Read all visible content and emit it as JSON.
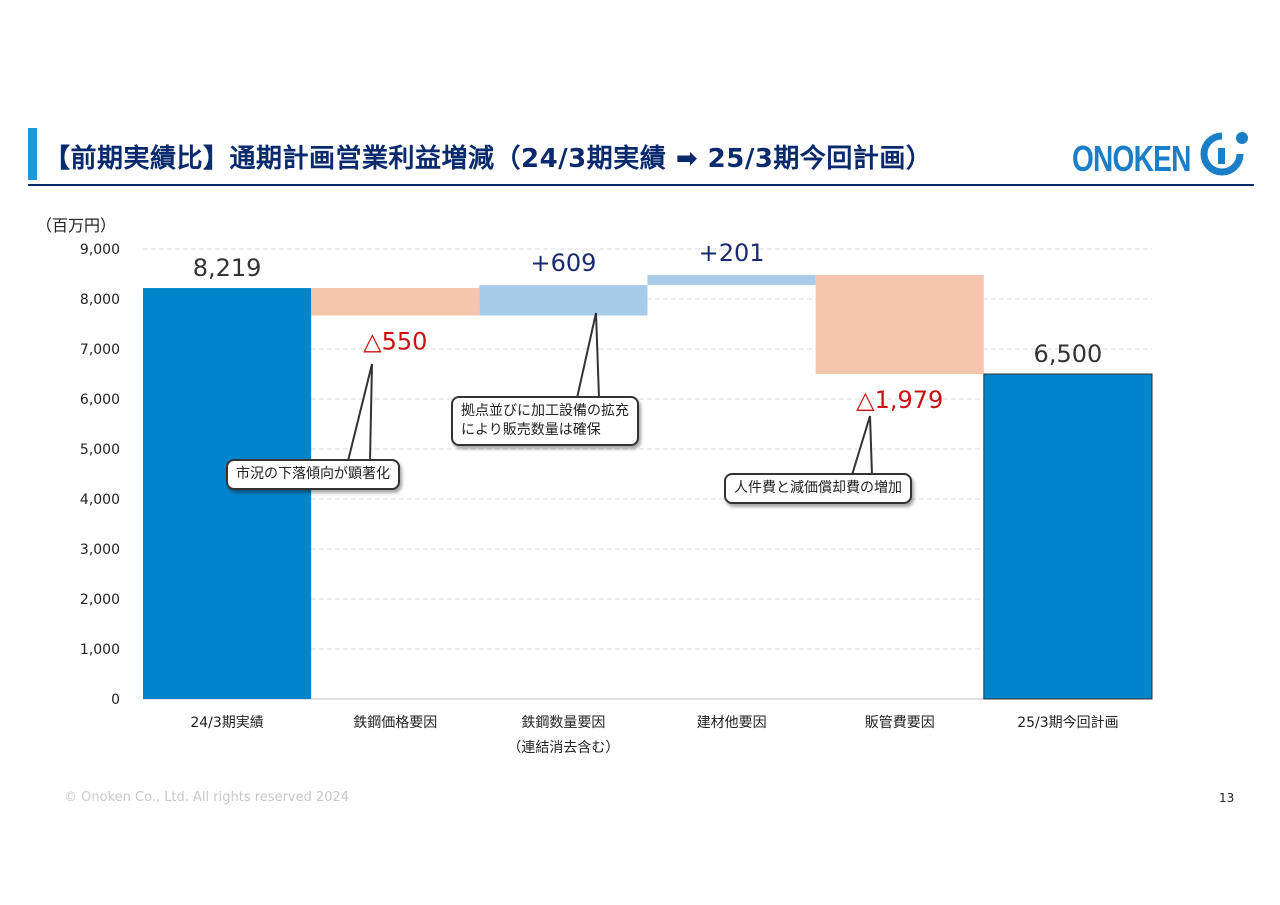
{
  "header": {
    "title": "【前期実績比】通期計画営業利益増減（24/3期実績 ➡ 25/3期今回計画）",
    "logo_text": "ONOKEN"
  },
  "colors": {
    "total": "#0085cc",
    "increase": "#a8cbea",
    "decrease": "#f5c5ad",
    "decrease_label": "#cc1111",
    "increase_label": "#1a2a6e",
    "title": "#0a2a6e",
    "accent": "#1a9ad6"
  },
  "chart_data": {
    "type": "bar",
    "subtype": "waterfall",
    "unit": "（百万円）",
    "ylim": [
      0,
      9000
    ],
    "yticks": [
      "0",
      "1,000",
      "2,000",
      "3,000",
      "4,000",
      "5,000",
      "6,000",
      "7,000",
      "8,000",
      "9,000"
    ],
    "grid": true,
    "categories": [
      "24/3期実績",
      "鉄鋼価格要因",
      "鉄鋼数量要因",
      "建材他要因",
      "販管費要因",
      "25/3期今回計画"
    ],
    "category_sublabels": [
      "",
      "",
      "（連結消去含む）",
      "",
      "",
      ""
    ],
    "values": [
      8219,
      -550,
      609,
      201,
      -1979,
      6500
    ],
    "kinds": [
      "total",
      "decrease",
      "increase",
      "increase",
      "decrease",
      "total"
    ],
    "data_labels": [
      "8,219",
      "△550",
      "+609",
      "+201",
      "△1,979",
      "6,500"
    ]
  },
  "callouts": {
    "steel_price": "市況の下落傾向が顕著化",
    "steel_volume": "拠点並びに加工設備の拡充\nにより販売数量は確保",
    "sga": "人件費と減価償却費の増加"
  },
  "footer": {
    "copyright": "© Onoken Co., Ltd. All rights reserved 2024",
    "page": "13"
  }
}
